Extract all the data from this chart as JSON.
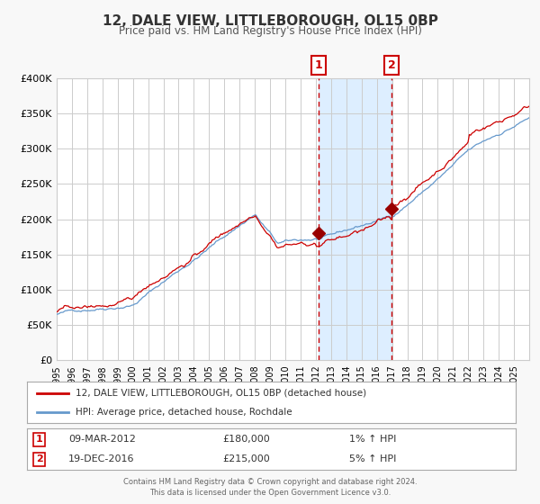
{
  "title": "12, DALE VIEW, LITTLEBOROUGH, OL15 0BP",
  "subtitle": "Price paid vs. HM Land Registry's House Price Index (HPI)",
  "background_color": "#f8f8f8",
  "plot_bg_color": "#ffffff",
  "grid_color": "#cccccc",
  "ylim": [
    0,
    400000
  ],
  "yticks": [
    0,
    50000,
    100000,
    150000,
    200000,
    250000,
    300000,
    350000,
    400000
  ],
  "ytick_labels": [
    "£0",
    "£50K",
    "£100K",
    "£150K",
    "£200K",
    "£250K",
    "£300K",
    "£350K",
    "£400K"
  ],
  "x_start_year": 1995,
  "x_end_year": 2026,
  "hpi_color": "#6699cc",
  "price_color": "#cc0000",
  "shade_color": "#ddeeff",
  "dashed_line_color": "#cc0000",
  "marker_color": "#990000",
  "event1_year": 2012.17,
  "event1_price": 180000,
  "event1_date": "09-MAR-2012",
  "event1_price_str": "£180,000",
  "event1_pct": "1% ↑ HPI",
  "event2_year": 2016.96,
  "event2_price": 215000,
  "event2_date": "19-DEC-2016",
  "event2_price_str": "£215,000",
  "event2_pct": "5% ↑ HPI",
  "legend_line1": "12, DALE VIEW, LITTLEBOROUGH, OL15 0BP (detached house)",
  "legend_line2": "HPI: Average price, detached house, Rochdale",
  "footer_line1": "Contains HM Land Registry data © Crown copyright and database right 2024.",
  "footer_line2": "This data is licensed under the Open Government Licence v3.0."
}
